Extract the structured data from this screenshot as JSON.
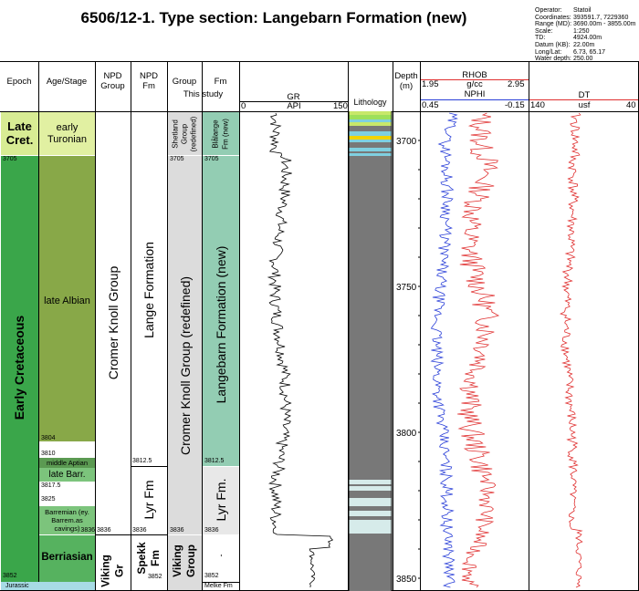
{
  "title": "6506/12-1. Type section: Langebarn Formation (new)",
  "meta": [
    {
      "k": "Operator:",
      "v": "Statoil"
    },
    {
      "k": "Coordinates:",
      "v": "393591.7, 7229360"
    },
    {
      "k": "Range (MD):",
      "v": "3690.00m - 3855.00m"
    },
    {
      "k": "Scale:",
      "v": "1:250"
    },
    {
      "k": "TD:",
      "v": "4924.00m"
    },
    {
      "k": "Datum (KB):",
      "v": "22.00m"
    },
    {
      "k": "Long/Lat:",
      "v": "6.73, 65.17"
    },
    {
      "k": "Water depth:",
      "v": "250.00"
    }
  ],
  "headers": {
    "epoch": "Epoch",
    "age": "Age/Stage",
    "npd_group_1": "NPD",
    "npd_group_2": "Group",
    "npd_fm_1": "NPD",
    "npd_fm_2": "Fm",
    "group": "Group",
    "fm": "Fm",
    "this_study": "This study",
    "lithology": "Lithology",
    "depth_1": "Depth",
    "depth_2": "(m)"
  },
  "logs": {
    "gr": {
      "name": "GR",
      "unit": "API",
      "min": "0",
      "max": "150",
      "color": "#000000"
    },
    "rhob": {
      "name": "RHOB",
      "unit": "g/cc",
      "min": "1.95",
      "max": "2.95",
      "color": "#e03030"
    },
    "nphi": {
      "name": "NPHI",
      "min": "0.45",
      "max": "-0.15",
      "color": "#2a3fd8"
    },
    "dt": {
      "name": "DT",
      "unit": "usf",
      "min": "140",
      "max": "40",
      "color": "#e03030"
    }
  },
  "depth_ticks": [
    "3700",
    "3750",
    "3800",
    "3850"
  ],
  "epoch": {
    "late_cret_1": "Late",
    "late_cret_2": "Cret.",
    "early_cret": "Early Cretaceous",
    "jurassic": "Jurassic",
    "top_3705": "3705",
    "top_3852": "3852"
  },
  "age": {
    "early_turonian_1": "early",
    "early_turonian_2": "Turonian",
    "late_albian": "late Albian",
    "middle_aptian": "middle Aptian",
    "late_barr": "late Barr.",
    "barremian_1": "Barremian (ey.",
    "barremian_2": "Barrem.as",
    "barremian_3": "cavings)",
    "berriasian": "Berriasian",
    "d3804": "3804",
    "d3810": "3810",
    "d3817": "3817.5",
    "d3825": "3825",
    "d3836": "3836"
  },
  "npd_group": {
    "cromer": "Cromer Knoll Group",
    "viking_1": "Viking",
    "viking_2": "Gr",
    "d3836": "3836"
  },
  "npd_fm": {
    "lange": "Lange Formation",
    "lyr": "Lyr Fm",
    "spekk_1": "Spekk",
    "spekk_2": "Fm",
    "d3812": "3812.5",
    "d3836": "3836",
    "d3852": "3852"
  },
  "group": {
    "shetland_1": "Shetland",
    "shetland_2": "Group",
    "shetland_3": "(redefined)",
    "cromer": "Cromer Knoll Group (redefined)",
    "viking_1": "Viking",
    "viking_2": "Group",
    "d3705": "3705",
    "d3836": "3836",
    "d3852": "3852"
  },
  "fm": {
    "blalange_1": "Blålange",
    "blalange_2": "Fm (new)",
    "langebarn": "Langebarn Formation (new)",
    "lyr": "Lyr Fm.",
    "dot": "-",
    "melke": "Melke Fm",
    "d3705": "3705",
    "d3812": "3812.5",
    "d3836": "3836"
  },
  "colors": {
    "late_cret": "#d8ec94",
    "early_cret": "#3aa64a",
    "jurassic": "#a7dbe5",
    "early_turonian": "#e1f0a2",
    "late_albian": "#88a848",
    "aptian": "#5b9a52",
    "barremian": "#7cc47c",
    "berriasian": "#56b25f",
    "shetland": "#dcdcdc",
    "langebarn": "#93cdb3",
    "lyr": "#e8e8e8",
    "shale": "#787878"
  }
}
